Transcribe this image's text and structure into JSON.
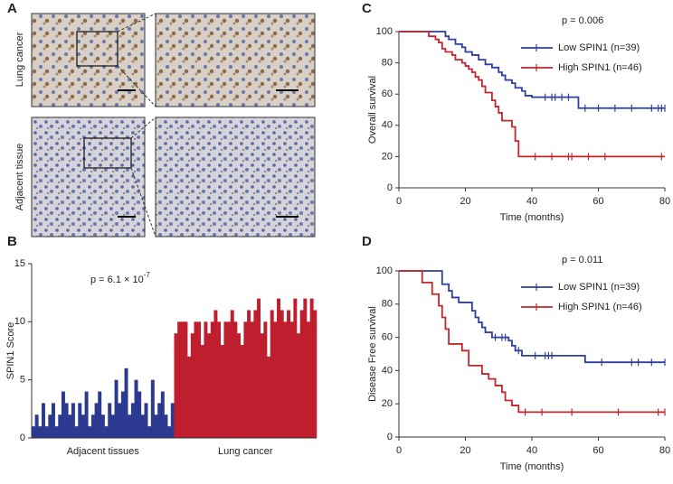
{
  "panel_a": {
    "label": "A",
    "images": [
      "Lung cancer",
      "Adjacent tissue"
    ]
  },
  "chart_data": [
    {
      "panel_label": "B",
      "type": "bar",
      "ylabel": "SPIN1 Score",
      "annotation": "p = 6.1 × 10",
      "annotation_exponent": "-7",
      "ylim": [
        0,
        15
      ],
      "yticks": [
        0,
        5,
        10,
        15
      ],
      "series": [
        {
          "name": "Adjacent tissues",
          "color": "#2b3990",
          "values": [
            1,
            2,
            1,
            3,
            1,
            2,
            3,
            1,
            2,
            4,
            3,
            2,
            3,
            1,
            3,
            2,
            4,
            1,
            2,
            3,
            4,
            2,
            1,
            3,
            2,
            5,
            3,
            4,
            6,
            2,
            3,
            5,
            4,
            2,
            3,
            1,
            5,
            2,
            3,
            4,
            2,
            1,
            3
          ]
        },
        {
          "name": "Lung cancer",
          "color": "#be1e2d",
          "values": [
            9,
            10,
            10,
            10,
            7,
            9,
            10,
            10,
            8,
            10,
            9,
            10,
            11,
            10,
            8,
            10,
            10,
            11,
            10,
            9,
            8,
            10,
            11,
            10,
            11,
            12,
            9,
            10,
            7,
            11,
            10,
            12,
            11,
            10,
            11,
            10,
            12,
            9,
            11,
            12,
            10,
            12,
            11
          ]
        }
      ]
    },
    {
      "panel_label": "C",
      "type": "step",
      "xlabel": "Time (months)",
      "ylabel": "Overall survival",
      "annotation": "p = 0.006",
      "xlim": [
        0,
        80
      ],
      "xticks": [
        0,
        20,
        40,
        60,
        80
      ],
      "ylim": [
        0,
        100
      ],
      "yticks": [
        0,
        20,
        40,
        60,
        80,
        100
      ],
      "series": [
        {
          "name": "Low SPIN1 (n=39)",
          "color": "#2e3f9e",
          "x": [
            0,
            14,
            15,
            17,
            19,
            20,
            22,
            24,
            26,
            28,
            30,
            31,
            32,
            34,
            35,
            37,
            38,
            40,
            54,
            80
          ],
          "values": [
            100,
            97,
            95,
            92,
            90,
            87,
            85,
            82,
            79,
            77,
            74,
            72,
            69,
            67,
            64,
            62,
            59,
            58,
            51,
            51
          ],
          "censor_x": [
            44,
            46,
            47,
            49,
            51,
            56,
            60,
            65,
            70,
            76,
            78,
            79,
            80
          ],
          "censor_values": [
            58,
            58,
            58,
            58,
            58,
            51,
            51,
            51,
            51,
            51,
            51,
            51,
            51
          ]
        },
        {
          "name": "High SPIN1 (n=46)",
          "color": "#c1272d",
          "x": [
            0,
            9,
            11,
            12,
            13,
            14,
            16,
            17,
            19,
            20,
            21,
            22,
            23,
            24,
            25,
            26,
            28,
            29,
            30,
            31,
            34,
            35,
            36,
            80
          ],
          "values": [
            100,
            97,
            95,
            93,
            89,
            87,
            85,
            82,
            80,
            78,
            76,
            74,
            71,
            69,
            65,
            61,
            56,
            52,
            48,
            43,
            39,
            30,
            20,
            20
          ],
          "censor_x": [
            41,
            46,
            51,
            52,
            57,
            62,
            79
          ],
          "censor_values": [
            20,
            20,
            20,
            20,
            20,
            20,
            20
          ]
        }
      ]
    },
    {
      "panel_label": "D",
      "type": "step",
      "xlabel": "Time (months)",
      "ylabel": "Disease Free survival",
      "annotation": "p = 0.011",
      "xlim": [
        0,
        80
      ],
      "xticks": [
        0,
        20,
        40,
        60,
        80
      ],
      "ylim": [
        0,
        100
      ],
      "yticks": [
        0,
        20,
        40,
        60,
        80,
        100
      ],
      "series": [
        {
          "name": "Low SPIN1 (n=39)",
          "color": "#2e3f9e",
          "x": [
            0,
            13,
            15,
            16,
            18,
            22,
            23,
            24,
            25,
            26,
            28,
            33,
            34,
            35,
            37,
            56,
            80
          ],
          "values": [
            100,
            92,
            88,
            84,
            81,
            76,
            72,
            69,
            66,
            63,
            60,
            58,
            55,
            52,
            49,
            45,
            45
          ],
          "censor_x": [
            29,
            31,
            32,
            36,
            41,
            44,
            45,
            46,
            61,
            70,
            72,
            76,
            80
          ],
          "censor_values": [
            60,
            60,
            60,
            52,
            49,
            49,
            49,
            49,
            45,
            45,
            45,
            45,
            45
          ]
        },
        {
          "name": "High SPIN1 (n=46)",
          "color": "#c1272d",
          "x": [
            0,
            7,
            10,
            12,
            13,
            14,
            15,
            19,
            21,
            25,
            27,
            29,
            31,
            32,
            34,
            36,
            80
          ],
          "values": [
            100,
            93,
            86,
            79,
            72,
            65,
            56,
            52,
            43,
            38,
            35,
            31,
            27,
            22,
            19,
            15,
            15
          ],
          "censor_x": [
            38,
            43,
            52,
            66,
            78,
            80
          ],
          "censor_values": [
            15,
            15,
            15,
            15,
            15,
            15
          ]
        }
      ]
    }
  ]
}
